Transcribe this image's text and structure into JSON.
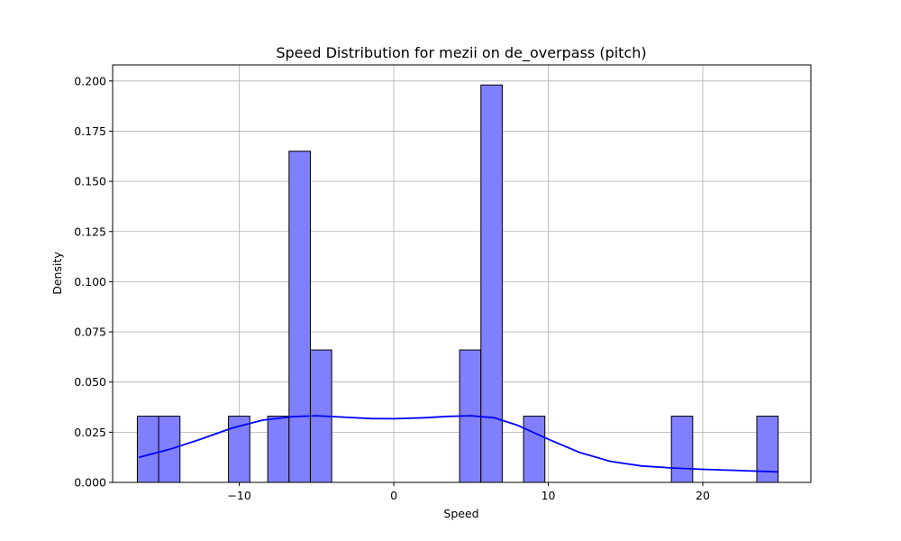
{
  "chart_data": {
    "type": "bar",
    "title": "Speed Distribution for mezii on de_overpass (pitch)",
    "xlabel": "Speed",
    "ylabel": "Density",
    "xlim": [
      -18.2,
      27.0
    ],
    "ylim": [
      0,
      0.208
    ],
    "xticks": [
      -10,
      0,
      10,
      20
    ],
    "xtick_labels": [
      "−10",
      "0",
      "10",
      "20"
    ],
    "yticks": [
      0.0,
      0.025,
      0.05,
      0.075,
      0.1,
      0.125,
      0.15,
      0.175,
      0.2
    ],
    "ytick_labels": [
      "0.000",
      "0.025",
      "0.050",
      "0.075",
      "0.100",
      "0.125",
      "0.150",
      "0.175",
      "0.200"
    ],
    "grid": true,
    "bins": [
      {
        "x0": -16.6,
        "x1": -15.22,
        "density": 0.033
      },
      {
        "x0": -15.22,
        "x1": -13.84,
        "density": 0.033
      },
      {
        "x0": -10.7,
        "x1": -9.32,
        "density": 0.033
      },
      {
        "x0": -8.16,
        "x1": -6.78,
        "density": 0.033
      },
      {
        "x0": -6.78,
        "x1": -5.4,
        "density": 0.165
      },
      {
        "x0": -5.4,
        "x1": -4.02,
        "density": 0.066
      },
      {
        "x0": 4.26,
        "x1": 5.64,
        "density": 0.066
      },
      {
        "x0": 5.64,
        "x1": 7.02,
        "density": 0.198
      },
      {
        "x0": 8.4,
        "x1": 9.78,
        "density": 0.033
      },
      {
        "x0": 17.97,
        "x1": 19.35,
        "density": 0.033
      },
      {
        "x0": 23.5,
        "x1": 24.88,
        "density": 0.033
      }
    ],
    "kde": {
      "x": [
        -16.5,
        -14.5,
        -12.5,
        -10.5,
        -8.5,
        -6.5,
        -5.0,
        -3.5,
        -1.5,
        0.0,
        2.0,
        3.5,
        5.0,
        6.5,
        8.0,
        10.0,
        12.0,
        14.0,
        16.0,
        18.0,
        20.0,
        22.0,
        24.9
      ],
      "y": [
        0.0125,
        0.0165,
        0.0215,
        0.027,
        0.031,
        0.0328,
        0.0332,
        0.0326,
        0.0318,
        0.0317,
        0.0322,
        0.0329,
        0.0332,
        0.0322,
        0.0285,
        0.0215,
        0.015,
        0.0105,
        0.0082,
        0.0072,
        0.0065,
        0.006,
        0.0052
      ]
    },
    "bar_color": "#8080ff",
    "bar_edge_color": "#000000",
    "line_color": "#0000ff"
  }
}
